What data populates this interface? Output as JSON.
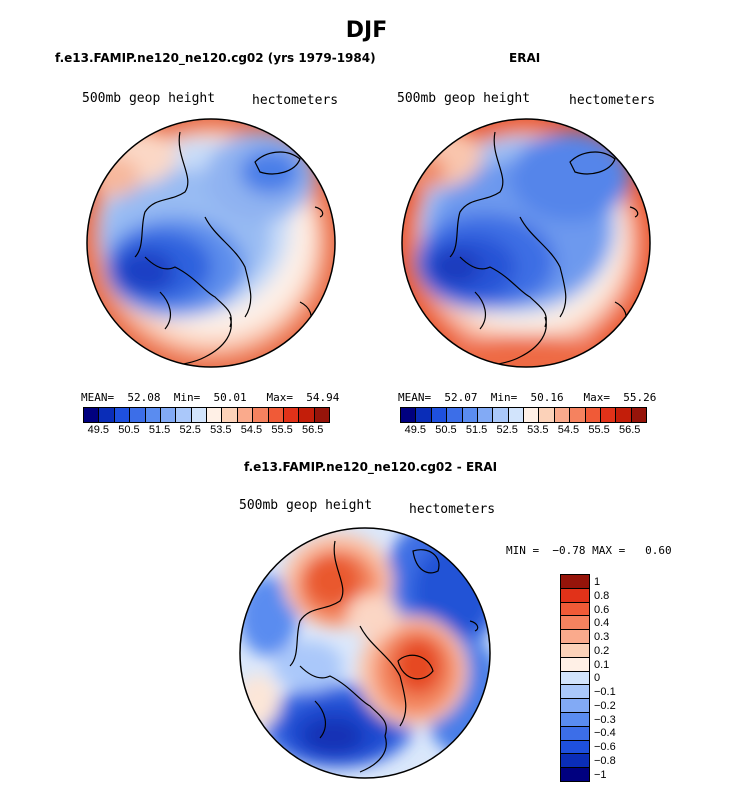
{
  "figure": {
    "season": "DJF",
    "unit_label": "hectometers",
    "variable_label": "500mb geop height"
  },
  "panels": {
    "model": {
      "title": "f.e13.FAMIP.ne120_ne120.cg02 (yrs 1979-1984)",
      "mean_label": "MEAN=",
      "mean": "52.08",
      "min_label": "Min=",
      "min": "50.01",
      "max_label": "Max=",
      "max": "54.94"
    },
    "obs": {
      "title": "ERAI",
      "mean_label": "MEAN=",
      "mean": "52.07",
      "min_label": "Min=",
      "min": "50.16",
      "max_label": "Max=",
      "max": "55.26"
    },
    "diff": {
      "title": "f.e13.FAMIP.ne120_ne120.cg02 - ERAI",
      "minmax": "MIN =  −0.78 MAX =   0.60"
    }
  },
  "colors": {
    "abs_scale": [
      "#00007f",
      "#0a2db8",
      "#1e50de",
      "#3c6ee8",
      "#5a8cf0",
      "#82aaf5",
      "#aac8fa",
      "#d2e4fc",
      "#fff0e6",
      "#fcd2b9",
      "#faaa8c",
      "#f5825f",
      "#f05a37",
      "#e13219",
      "#c31e0a",
      "#96140a"
    ],
    "diff_scale": [
      "#00007f",
      "#0a2db8",
      "#1e50de",
      "#3c6ee8",
      "#5a8cf0",
      "#82aaf5",
      "#aac8fa",
      "#d2e4fc",
      "#fff0e6",
      "#fcd2b9",
      "#faaa8c",
      "#f5825f",
      "#f05a37",
      "#e13219",
      "#96140a"
    ]
  },
  "colorbar_abs": {
    "labels": [
      "49.5",
      "50.5",
      "51.5",
      "52.5",
      "53.5",
      "54.5",
      "55.5",
      "56.5"
    ]
  },
  "colorbar_diff": {
    "labels": [
      "1",
      "0.8",
      "0.6",
      "0.4",
      "0.3",
      "0.2",
      "0.1",
      "0",
      "−0.1",
      "−0.2",
      "−0.3",
      "−0.4",
      "−0.6",
      "−0.8",
      "−1"
    ]
  }
}
